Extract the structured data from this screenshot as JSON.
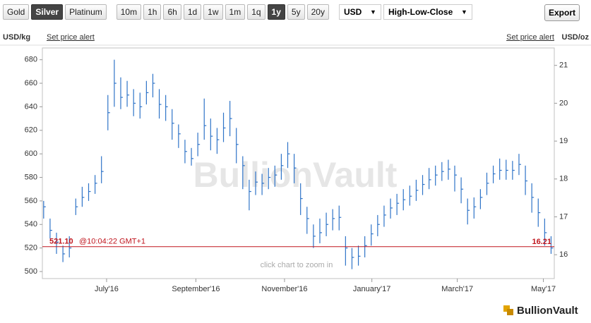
{
  "toolbar": {
    "metals": [
      {
        "label": "Gold"
      },
      {
        "label": "Silver",
        "selected": true
      },
      {
        "label": "Platinum"
      }
    ],
    "ranges": [
      {
        "label": "10m"
      },
      {
        "label": "1h"
      },
      {
        "label": "6h"
      },
      {
        "label": "1d"
      },
      {
        "label": "1w"
      },
      {
        "label": "1m"
      },
      {
        "label": "1q"
      },
      {
        "label": "1y",
        "selected": true
      },
      {
        "label": "5y"
      },
      {
        "label": "20y"
      }
    ],
    "currency": "USD",
    "style": "High-Low-Close",
    "export": "Export"
  },
  "links": {
    "left_alert": "Set price alert",
    "right_alert": "Set price alert"
  },
  "watermark": "BullionVault",
  "hint": "click chart to zoom in",
  "logo": "BullionVault",
  "chart_data": {
    "type": "hlc",
    "ylabel": "USD/kg",
    "y2label": "USD/oz",
    "color": "#2f74c8",
    "high": [
      560,
      545,
      533,
      522,
      530,
      562,
      572,
      575,
      582,
      598,
      650,
      680,
      665,
      662,
      655,
      652,
      662,
      668,
      655,
      650,
      638,
      625,
      612,
      605,
      618,
      647,
      630,
      622,
      635,
      645,
      622,
      598,
      578,
      585,
      583,
      588,
      590,
      600,
      610,
      600,
      575,
      555,
      540,
      545,
      550,
      553,
      556,
      530,
      520,
      522,
      530,
      540,
      548,
      556,
      562,
      566,
      570,
      573,
      578,
      582,
      588,
      590,
      593,
      595,
      590,
      580,
      562,
      563,
      570,
      584,
      590,
      596,
      595,
      594,
      600,
      590,
      575,
      562,
      545,
      530
    ],
    "low": [
      545,
      528,
      515,
      508,
      512,
      548,
      555,
      560,
      566,
      575,
      620,
      640,
      638,
      640,
      632,
      630,
      642,
      648,
      630,
      628,
      612,
      605,
      592,
      590,
      598,
      612,
      603,
      600,
      610,
      615,
      592,
      570,
      552,
      565,
      565,
      570,
      572,
      578,
      588,
      575,
      548,
      532,
      520,
      524,
      530,
      535,
      535,
      505,
      502,
      505,
      512,
      522,
      530,
      538,
      545,
      548,
      552,
      556,
      560,
      565,
      570,
      573,
      577,
      578,
      568,
      558,
      540,
      545,
      553,
      565,
      575,
      578,
      578,
      578,
      582,
      565,
      550,
      538,
      522,
      515
    ],
    "close": [
      555,
      535,
      525,
      515,
      520,
      555,
      563,
      568,
      575,
      585,
      635,
      660,
      648,
      650,
      643,
      640,
      652,
      660,
      642,
      640,
      626,
      617,
      602,
      596,
      608,
      624,
      615,
      612,
      622,
      630,
      608,
      590,
      568,
      576,
      575,
      580,
      582,
      590,
      600,
      588,
      562,
      545,
      530,
      533,
      540,
      545,
      546,
      520,
      512,
      513,
      522,
      532,
      540,
      548,
      554,
      558,
      561,
      564,
      569,
      574,
      578,
      582,
      585,
      587,
      582,
      570,
      552,
      555,
      563,
      575,
      583,
      586,
      586,
      586,
      591,
      577,
      563,
      550,
      533,
      520
    ],
    "xlim": [
      -0.2,
      79.5
    ],
    "xticks": [
      {
        "value": 9.8,
        "label": "July'16"
      },
      {
        "value": 23.7,
        "label": "September'16"
      },
      {
        "value": 37.5,
        "label": "November'16"
      },
      {
        "value": 51.1,
        "label": "January'17"
      },
      {
        "value": 64.4,
        "label": "March'17"
      },
      {
        "value": 77.8,
        "label": "May'17"
      }
    ],
    "ylim": [
      494,
      690
    ],
    "yticks": [
      500,
      520,
      540,
      560,
      580,
      600,
      620,
      640,
      660,
      680
    ],
    "y2lim": [
      15.37,
      21.46
    ],
    "y2ticks": [
      16,
      17,
      18,
      19,
      20,
      21
    ],
    "price_line": {
      "value": 521.1,
      "label": "521.10",
      "time": "@10:04:22 GMT+1",
      "value_oz": 16.21,
      "color": "#c0161e"
    }
  }
}
